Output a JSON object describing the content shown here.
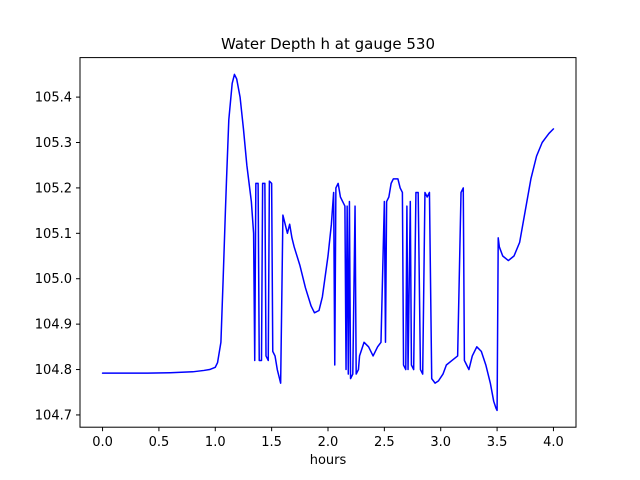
{
  "title": "Water Depth h at gauge 530",
  "chart_data": {
    "type": "line",
    "title": "Water Depth h at gauge 530",
    "xlabel": "hours",
    "ylabel": "",
    "series_name": "water-depth-h",
    "line_color": "#0000ff",
    "background_color": "#ffffff",
    "axes_color": "#000000",
    "grid": false,
    "legend": "none",
    "xlim": [
      -0.2,
      4.2
    ],
    "ylim": [
      104.673,
      105.487
    ],
    "x_ticks": [
      0.0,
      0.5,
      1.0,
      1.5,
      2.0,
      2.5,
      3.0,
      3.5,
      4.0
    ],
    "x_tick_labels": [
      "0.0",
      "0.5",
      "1.0",
      "1.5",
      "2.0",
      "2.5",
      "3.0",
      "3.5",
      "4.0"
    ],
    "y_ticks": [
      104.7,
      104.8,
      104.9,
      105.0,
      105.1,
      105.2,
      105.3,
      105.4
    ],
    "y_tick_labels": [
      "104.7",
      "104.8",
      "104.9",
      "105.0",
      "105.1",
      "105.2",
      "105.3",
      "105.4"
    ],
    "x": [
      0.0,
      0.2,
      0.4,
      0.6,
      0.8,
      0.9,
      0.95,
      1.0,
      1.02,
      1.05,
      1.07,
      1.09,
      1.1,
      1.12,
      1.15,
      1.17,
      1.19,
      1.22,
      1.25,
      1.28,
      1.3,
      1.32,
      1.34,
      1.35,
      1.36,
      1.38,
      1.39,
      1.41,
      1.42,
      1.44,
      1.45,
      1.47,
      1.48,
      1.5,
      1.51,
      1.53,
      1.55,
      1.57,
      1.58,
      1.6,
      1.62,
      1.64,
      1.66,
      1.68,
      1.7,
      1.75,
      1.8,
      1.85,
      1.88,
      1.92,
      1.95,
      2.0,
      2.03,
      2.05,
      2.06,
      2.07,
      2.09,
      2.11,
      2.13,
      2.15,
      2.16,
      2.17,
      2.18,
      2.19,
      2.2,
      2.22,
      2.24,
      2.25,
      2.27,
      2.28,
      2.32,
      2.36,
      2.4,
      2.44,
      2.47,
      2.5,
      2.51,
      2.52,
      2.54,
      2.56,
      2.58,
      2.62,
      2.64,
      2.66,
      2.67,
      2.69,
      2.7,
      2.71,
      2.73,
      2.74,
      2.76,
      2.78,
      2.8,
      2.82,
      2.84,
      2.86,
      2.88,
      2.9,
      2.92,
      2.95,
      2.98,
      3.02,
      3.05,
      3.1,
      3.15,
      3.18,
      3.2,
      3.21,
      3.23,
      3.25,
      3.28,
      3.32,
      3.36,
      3.4,
      3.44,
      3.47,
      3.49,
      3.5,
      3.51,
      3.52,
      3.55,
      3.6,
      3.65,
      3.7,
      3.75,
      3.8,
      3.85,
      3.9,
      3.93,
      3.96,
      4.0
    ],
    "y": [
      104.792,
      104.792,
      104.792,
      104.793,
      104.795,
      104.798,
      104.8,
      104.805,
      104.815,
      104.86,
      105.0,
      105.15,
      105.22,
      105.35,
      105.43,
      105.45,
      105.44,
      105.4,
      105.33,
      105.25,
      105.21,
      105.17,
      105.1,
      104.82,
      105.21,
      105.21,
      104.82,
      104.82,
      105.21,
      105.21,
      104.83,
      104.82,
      105.215,
      105.21,
      104.84,
      104.83,
      104.8,
      104.78,
      104.77,
      105.14,
      105.12,
      105.1,
      105.12,
      105.09,
      105.07,
      105.03,
      104.98,
      104.94,
      104.925,
      104.93,
      104.96,
      105.05,
      105.12,
      105.19,
      104.81,
      105.2,
      105.21,
      105.18,
      105.17,
      105.16,
      104.8,
      105.16,
      104.79,
      105.17,
      104.78,
      104.79,
      105.16,
      104.79,
      104.8,
      104.83,
      104.86,
      104.85,
      104.83,
      104.85,
      104.86,
      105.17,
      104.86,
      105.17,
      105.18,
      105.21,
      105.22,
      105.22,
      105.2,
      105.19,
      104.81,
      104.8,
      105.16,
      104.8,
      105.17,
      104.81,
      104.8,
      105.19,
      105.19,
      104.8,
      104.79,
      105.19,
      105.18,
      105.19,
      104.78,
      104.77,
      104.775,
      104.79,
      104.81,
      104.82,
      104.83,
      105.19,
      105.2,
      104.82,
      104.81,
      104.8,
      104.83,
      104.85,
      104.84,
      104.81,
      104.77,
      104.73,
      104.715,
      104.71,
      105.09,
      105.07,
      105.05,
      105.04,
      105.05,
      105.08,
      105.15,
      105.22,
      105.27,
      105.3,
      105.31,
      105.32,
      105.33
    ]
  }
}
